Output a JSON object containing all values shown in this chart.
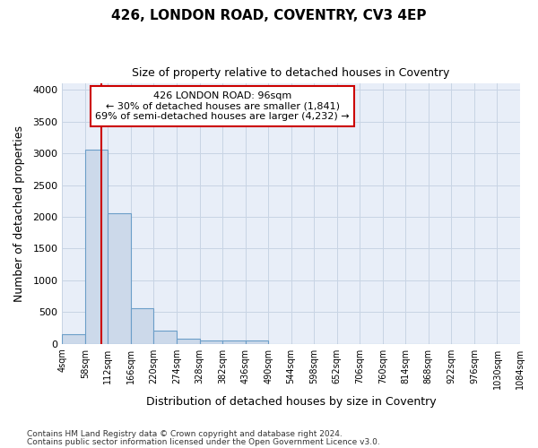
{
  "title1": "426, LONDON ROAD, COVENTRY, CV3 4EP",
  "title2": "Size of property relative to detached houses in Coventry",
  "xlabel": "Distribution of detached houses by size in Coventry",
  "ylabel": "Number of detached properties",
  "annotation_line1": "426 LONDON ROAD: 96sqm",
  "annotation_line2": "← 30% of detached houses are smaller (1,841)",
  "annotation_line3": "69% of semi-detached houses are larger (4,232) →",
  "property_size": 96,
  "footnote1": "Contains HM Land Registry data © Crown copyright and database right 2024.",
  "footnote2": "Contains public sector information licensed under the Open Government Licence v3.0.",
  "bar_color": "#ccd9ea",
  "bar_edge_color": "#6b9ec8",
  "vline_color": "#cc0000",
  "annotation_box_color": "#cc0000",
  "grid_color": "#c8d4e4",
  "background_color": "#e8eef8",
  "bin_edges": [
    4,
    58,
    112,
    166,
    220,
    274,
    328,
    382,
    436,
    490,
    544,
    598,
    652,
    706,
    760,
    814,
    868,
    922,
    976,
    1030,
    1084
  ],
  "bar_heights": [
    150,
    3060,
    2060,
    565,
    205,
    80,
    55,
    55,
    50,
    0,
    0,
    0,
    0,
    0,
    0,
    0,
    0,
    0,
    0,
    0
  ],
  "ylim": [
    0,
    4100
  ],
  "yticks": [
    0,
    500,
    1000,
    1500,
    2000,
    2500,
    3000,
    3500,
    4000
  ]
}
